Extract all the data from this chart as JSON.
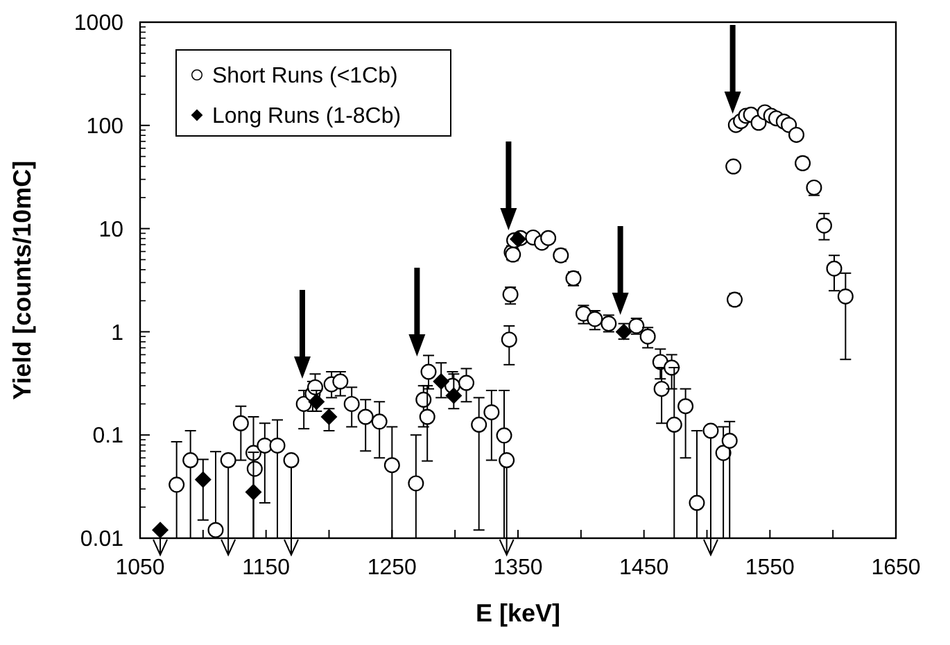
{
  "chart_data": {
    "type": "scatter",
    "xlabel": "E  [keV]",
    "ylabel": "Yield [counts/10mC]",
    "log": "y",
    "xlim": [
      1050,
      1650
    ],
    "ylim": [
      0.01,
      1000
    ],
    "xticks": [
      1050,
      {
        "value": 1100,
        "label": null
      },
      1150,
      {
        "value": 1200,
        "label": null
      },
      1250,
      {
        "value": 1300,
        "label": null
      },
      1350,
      {
        "value": 1400,
        "label": null
      },
      1450,
      {
        "value": 1500,
        "label": null
      },
      1550,
      {
        "value": 1600,
        "label": null
      },
      1650
    ],
    "yticks": [
      0.01,
      0.1,
      1,
      10,
      100,
      1000
    ],
    "grid": false,
    "legend": "top left",
    "series": [
      {
        "name": "Short Runs (<1Cb)",
        "color": "#000000",
        "marker": "circle",
        "x": [
          1079,
          1090,
          1110,
          1120,
          1130,
          1140,
          1141,
          1149,
          1159,
          1170,
          1180,
          1187,
          1189,
          1202,
          1209,
          1218,
          1229,
          1240,
          1250,
          1269,
          1275,
          1278,
          1279,
          1298,
          1309,
          1319,
          1329,
          1339,
          1341,
          1343,
          1344,
          1345,
          1346,
          1347,
          1352,
          1362,
          1369,
          1374,
          1384,
          1394,
          1402,
          1411,
          1422,
          1444,
          1453,
          1463,
          1464,
          1472,
          1474,
          1483,
          1492,
          1503,
          1513,
          1518,
          1521,
          1522,
          1523,
          1527,
          1531,
          1535,
          1541,
          1546,
          1551,
          1555,
          1561,
          1565,
          1571,
          1576,
          1585,
          1593,
          1601,
          1610
        ],
        "values": [
          0.033,
          0.057,
          0.012,
          0.057,
          0.13,
          0.067,
          0.047,
          0.079,
          0.079,
          0.057,
          0.2,
          0.25,
          0.29,
          0.31,
          0.33,
          0.2,
          0.15,
          0.135,
          0.051,
          0.034,
          0.22,
          0.15,
          0.41,
          0.3,
          0.32,
          0.126,
          0.166,
          0.099,
          0.057,
          0.84,
          2.3,
          5.9,
          5.6,
          7.7,
          8.1,
          8.2,
          7.3,
          8.1,
          5.5,
          3.3,
          1.5,
          1.33,
          1.2,
          1.14,
          0.9,
          0.51,
          0.28,
          0.45,
          0.126,
          0.19,
          0.022,
          0.11,
          0.067,
          0.088,
          40,
          2.05,
          101,
          110,
          124,
          127,
          106,
          134,
          124,
          117,
          109,
          101,
          81,
          43,
          25,
          10.7,
          4.1,
          2.2
        ],
        "errors": [
          [
            0.01,
            0.086
          ],
          [
            0.01,
            0.11
          ],
          [
            0.01,
            0.069
          ],
          [
            0.01,
            0.057
          ],
          [
            0.057,
            0.19
          ],
          [
            0.01,
            0.15
          ],
          null,
          [
            0.022,
            0.13
          ],
          [
            0.01,
            0.14
          ],
          [
            0.01,
            0.057
          ],
          [
            0.115,
            0.27
          ],
          [
            0.17,
            0.33
          ],
          [
            0.21,
            0.39
          ],
          [
            0.23,
            0.41
          ],
          [
            0.24,
            0.41
          ],
          [
            0.12,
            0.29
          ],
          [
            0.07,
            0.22
          ],
          [
            0.06,
            0.21
          ],
          [
            0.01,
            0.12
          ],
          [
            0.01,
            0.1
          ],
          [
            0.12,
            0.3
          ],
          [
            0.056,
            0.3
          ],
          [
            0.28,
            0.59
          ],
          [
            0.23,
            0.41
          ],
          [
            0.21,
            0.44
          ],
          [
            0.012,
            0.23
          ],
          [
            0.057,
            0.27
          ],
          [
            0.01,
            0.27
          ],
          [
            0.01,
            0.057
          ],
          [
            0.48,
            1.14
          ],
          [
            1.86,
            2.7
          ],
          [
            5,
            6.8
          ],
          [
            4.9,
            6.3
          ],
          [
            6.8,
            8.6
          ],
          [
            7.2,
            9
          ],
          [
            7.3,
            9.1
          ],
          [
            6.5,
            8.2
          ],
          [
            7.2,
            9
          ],
          [
            4.8,
            6.3
          ],
          [
            2.8,
            3.8
          ],
          [
            1.2,
            1.8
          ],
          [
            1.05,
            1.6
          ],
          [
            1,
            1.45
          ],
          [
            0.95,
            1.35
          ],
          [
            0.7,
            1.1
          ],
          [
            0.35,
            0.68
          ],
          [
            0.13,
            0.45
          ],
          [
            0.28,
            0.6
          ],
          [
            0.01,
            0.45
          ],
          [
            0.06,
            0.28
          ],
          [
            0.01,
            0.11
          ],
          [
            0.01,
            0.11
          ],
          [
            0.01,
            0.12
          ],
          [
            0.01,
            0.135
          ],
          [
            36,
            44
          ],
          [
            1.8,
            2.35
          ],
          [
            91,
            111
          ],
          [
            99,
            121
          ],
          [
            112,
            136
          ],
          [
            114,
            140
          ],
          [
            95,
            117
          ],
          [
            121,
            147
          ],
          [
            112,
            136
          ],
          [
            105,
            129
          ],
          [
            98,
            120
          ],
          [
            91,
            111
          ],
          [
            73,
            89
          ],
          [
            38,
            49
          ],
          [
            21,
            28
          ],
          [
            7.8,
            14
          ],
          [
            2.5,
            5.5
          ],
          [
            0.54,
            3.7
          ]
        ]
      },
      {
        "name": "Long Runs (1-8Cb)",
        "color": "#000000",
        "marker": "diamond",
        "x": [
          1066,
          1100,
          1140,
          1190,
          1200,
          1289,
          1299,
          1350,
          1434
        ],
        "values": [
          0.012,
          0.037,
          0.028,
          0.21,
          0.15,
          0.33,
          0.24,
          7.9,
          1.0
        ],
        "errors": [
          [
            0.01,
            0.012
          ],
          [
            0.015,
            0.058
          ],
          [
            0.01,
            0.068
          ],
          [
            0.17,
            0.27
          ],
          [
            0.11,
            0.18
          ],
          [
            0.23,
            0.5
          ],
          [
            0.18,
            0.39
          ],
          null,
          [
            0.85,
            1.2
          ]
        ]
      }
    ]
  }
}
